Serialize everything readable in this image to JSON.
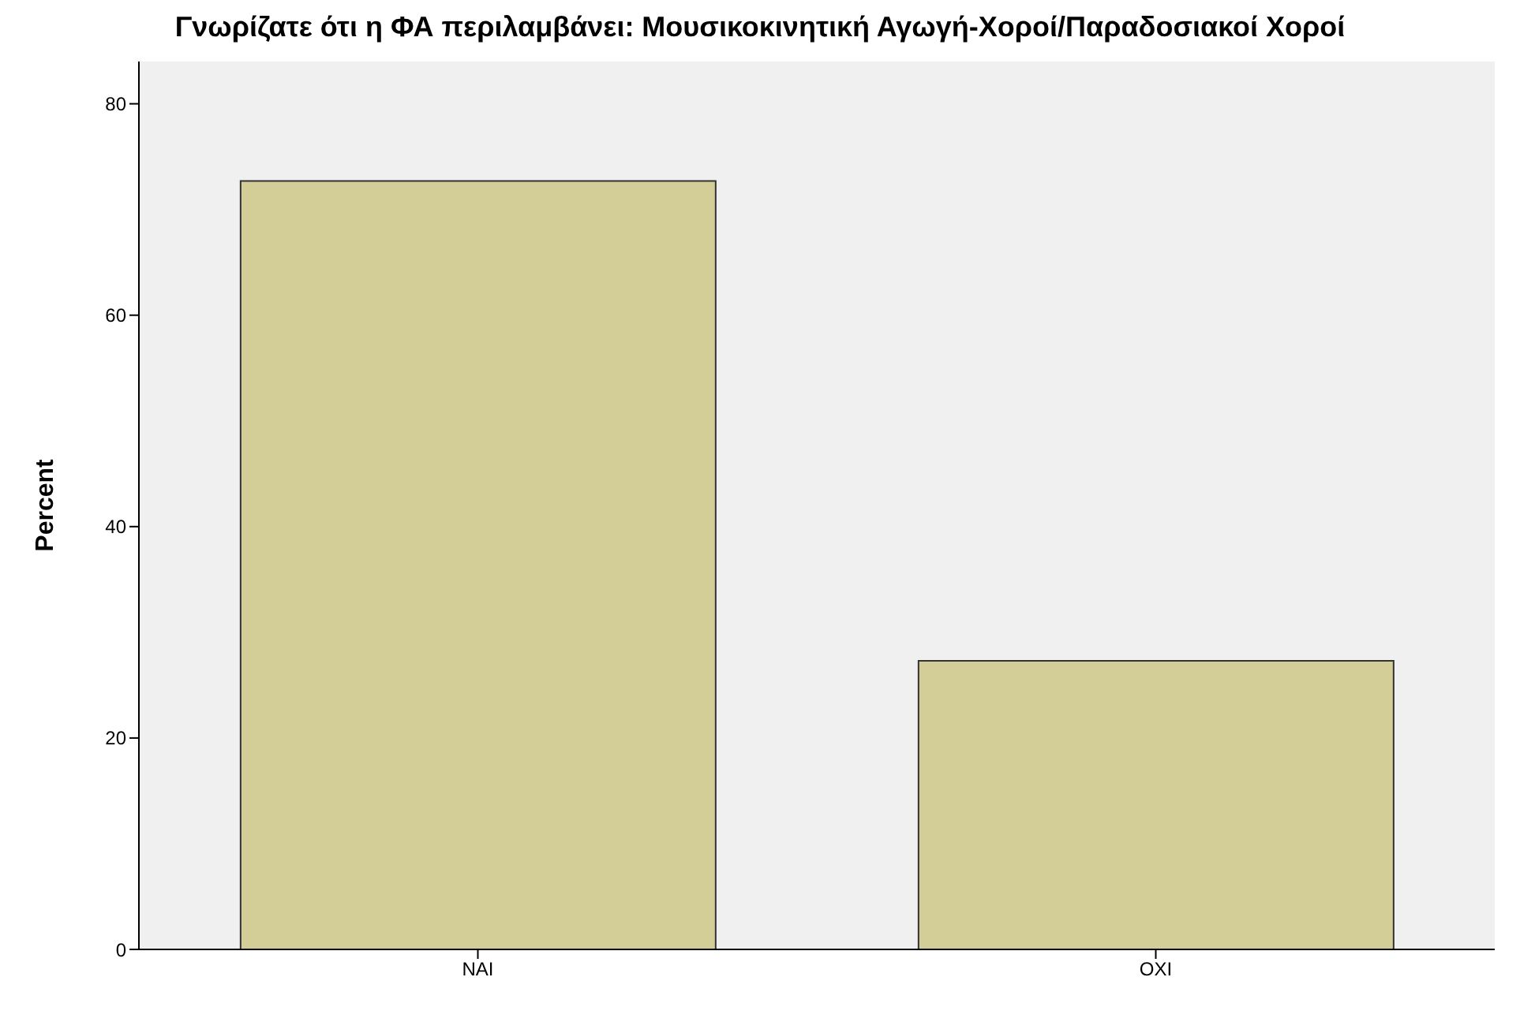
{
  "chart_data": {
    "type": "bar",
    "title": "Γνωρίζατε ότι η ΦΑ περιλαμβάνει: Μουσικοκινητική Αγωγή-Χοροί/Παραδοσιακοί Χοροί",
    "ylabel": "Percent",
    "categories": [
      "NAI",
      "OXI"
    ],
    "values": [
      72.7,
      27.3
    ],
    "color": "#d3ce97",
    "ylim": [
      0,
      84
    ],
    "yticks": [
      0,
      20,
      40,
      60,
      80
    ],
    "grid": false,
    "legend": false
  }
}
